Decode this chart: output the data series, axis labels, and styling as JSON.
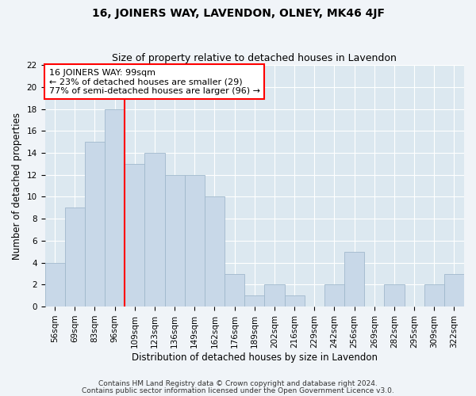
{
  "title": "16, JOINERS WAY, LAVENDON, OLNEY, MK46 4JF",
  "subtitle": "Size of property relative to detached houses in Lavendon",
  "xlabel": "Distribution of detached houses by size in Lavendon",
  "ylabel": "Number of detached properties",
  "categories": [
    "56sqm",
    "69sqm",
    "83sqm",
    "96sqm",
    "109sqm",
    "123sqm",
    "136sqm",
    "149sqm",
    "162sqm",
    "176sqm",
    "189sqm",
    "202sqm",
    "216sqm",
    "229sqm",
    "242sqm",
    "256sqm",
    "269sqm",
    "282sqm",
    "295sqm",
    "309sqm",
    "322sqm"
  ],
  "values": [
    4,
    9,
    15,
    18,
    13,
    14,
    12,
    12,
    10,
    3,
    1,
    2,
    1,
    0,
    2,
    5,
    0,
    2,
    0,
    2,
    3
  ],
  "bar_color": "#c8d8e8",
  "bar_edge_color": "#a0b8cc",
  "red_line_x": 3.5,
  "annotation_line1": "16 JOINERS WAY: 99sqm",
  "annotation_line2": "← 23% of detached houses are smaller (29)",
  "annotation_line3": "77% of semi-detached houses are larger (96) →",
  "ylim": [
    0,
    22
  ],
  "yticks": [
    0,
    2,
    4,
    6,
    8,
    10,
    12,
    14,
    16,
    18,
    20,
    22
  ],
  "footer1": "Contains HM Land Registry data © Crown copyright and database right 2024.",
  "footer2": "Contains public sector information licensed under the Open Government Licence v3.0.",
  "fig_bg_color": "#f0f4f8",
  "plot_bg_color": "#dce8f0",
  "title_fontsize": 10,
  "subtitle_fontsize": 9,
  "axis_label_fontsize": 8.5,
  "tick_fontsize": 7.5,
  "annotation_fontsize": 8,
  "footer_fontsize": 6.5
}
